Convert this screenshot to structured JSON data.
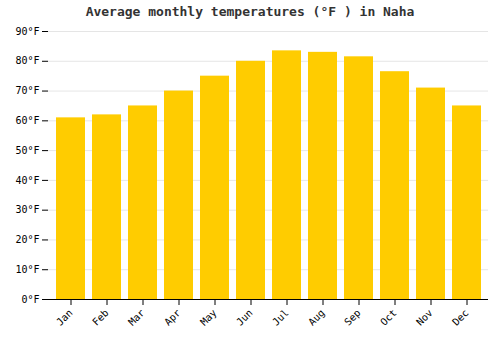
{
  "chart_data": {
    "type": "bar",
    "title": "Average monthly temperatures (°F ) in Naha",
    "categories": [
      "Jan",
      "Feb",
      "Mar",
      "Apr",
      "May",
      "Jun",
      "Jul",
      "Aug",
      "Sep",
      "Oct",
      "Nov",
      "Dec"
    ],
    "values": [
      61,
      62,
      65,
      70,
      75,
      80,
      83.5,
      83,
      81.5,
      76.5,
      71,
      65
    ],
    "color": "#FFCC00",
    "ylim": [
      0,
      90
    ],
    "yticks": [
      {
        "value": 0,
        "label": "0°F"
      },
      {
        "value": 10,
        "label": "10°F"
      },
      {
        "value": 20,
        "label": "20°F"
      },
      {
        "value": 30,
        "label": "30°F"
      },
      {
        "value": 40,
        "label": "40°F"
      },
      {
        "value": 50,
        "label": "50°F"
      },
      {
        "value": 60,
        "label": "60°F"
      },
      {
        "value": 70,
        "label": "70°F"
      },
      {
        "value": 80,
        "label": "80°F"
      },
      {
        "value": 90,
        "label": "90°F"
      }
    ],
    "grid": true
  }
}
